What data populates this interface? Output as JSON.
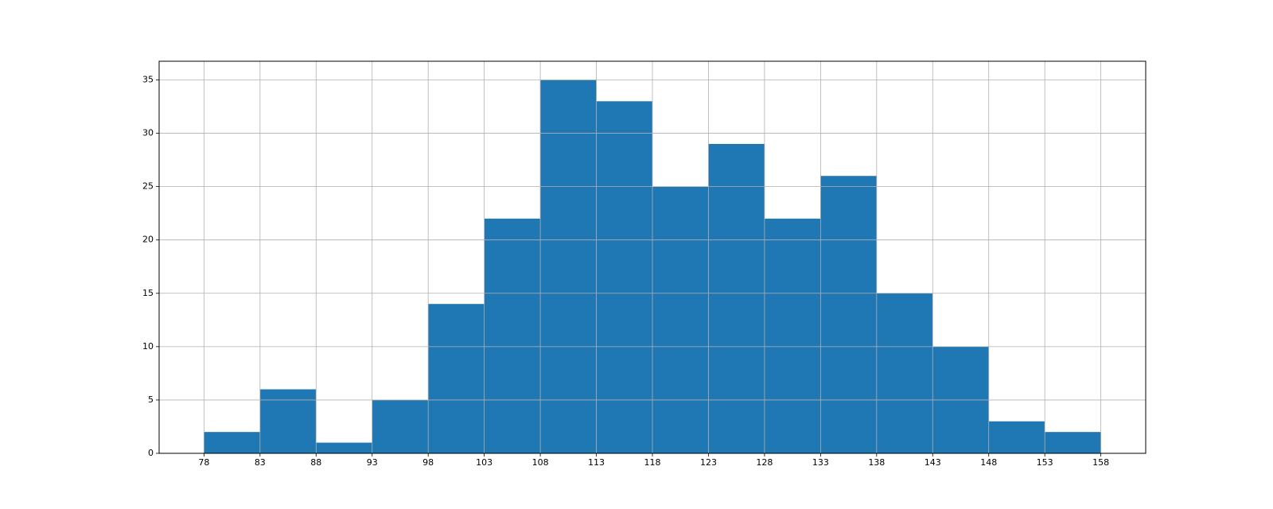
{
  "chart_data": {
    "type": "histogram",
    "bins": [
      78,
      83,
      88,
      93,
      98,
      103,
      108,
      113,
      118,
      123,
      128,
      133,
      138,
      143,
      148,
      153,
      158
    ],
    "values": [
      2,
      6,
      1,
      5,
      14,
      22,
      35,
      33,
      25,
      29,
      22,
      26,
      15,
      10,
      3,
      2
    ],
    "color": "#1f77b4",
    "xlim": [
      74,
      162
    ],
    "xticks": [
      78,
      83,
      88,
      93,
      98,
      103,
      108,
      113,
      118,
      123,
      128,
      133,
      138,
      143,
      148,
      153,
      158
    ],
    "ylim": [
      0,
      36.75
    ],
    "yticks": [
      0,
      5,
      10,
      15,
      20,
      25,
      30,
      35
    ],
    "grid": true
  }
}
